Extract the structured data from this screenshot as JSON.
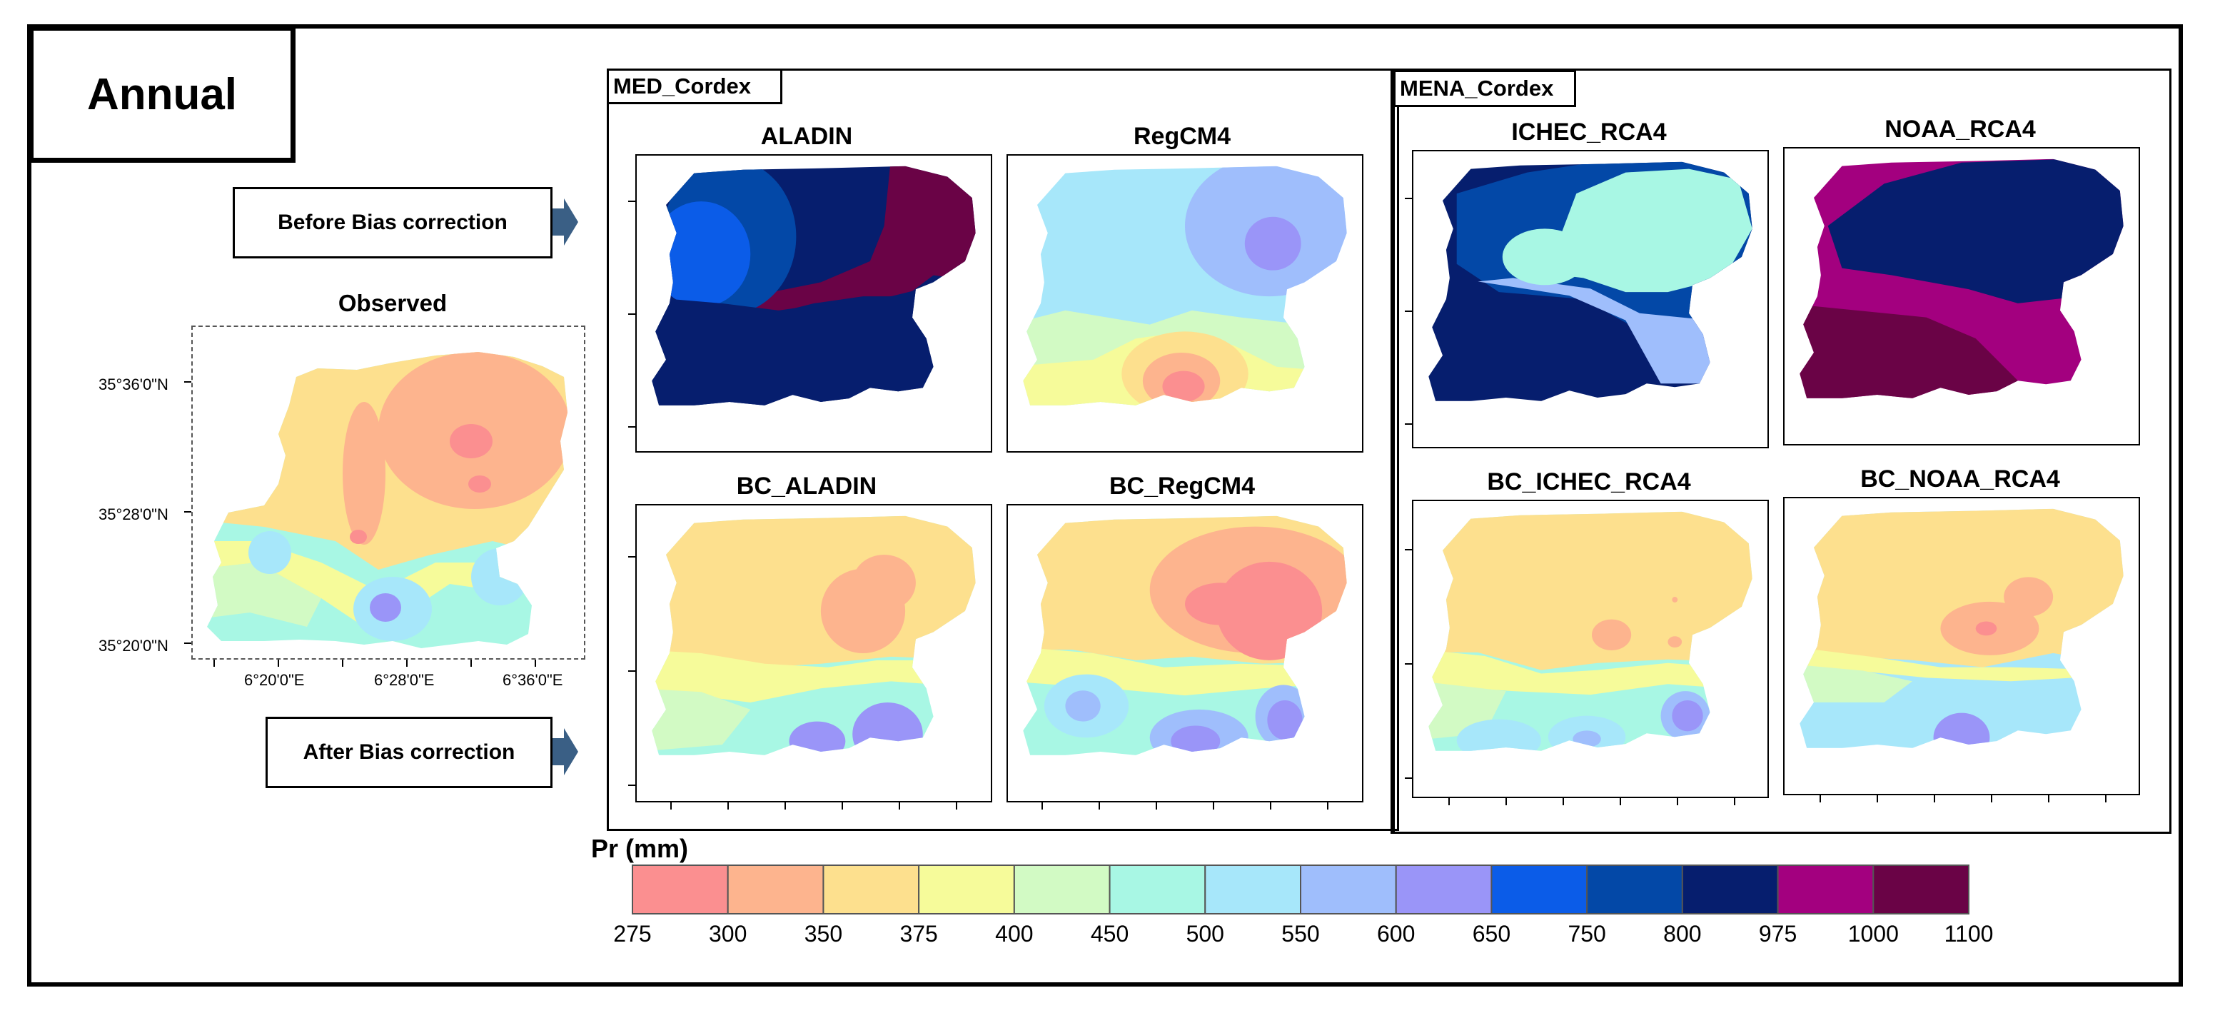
{
  "figure_title": "Annual",
  "groups": {
    "med": "MED_Cordex",
    "mena": "MENA_Cordex"
  },
  "callouts": {
    "before": "Before Bias correction",
    "after": "After Bias correction"
  },
  "observed": {
    "title": "Observed",
    "lat_labels": [
      "35°36'0\"N",
      "35°28'0\"N",
      "35°20'0\"N"
    ],
    "lon_labels": [
      "6°20'0\"E",
      "6°28'0\"E",
      "6°36'0\"E"
    ]
  },
  "panels": {
    "aladin": "ALADIN",
    "regcm4": "RegCM4",
    "ichec": "ICHEC_RCA4",
    "noaa": "NOAA_RCA4",
    "bc_aladin": "BC_ALADIN",
    "bc_regcm4": "BC_RegCM4",
    "bc_ichec": "BC_ICHEC_RCA4",
    "bc_noaa": "BC_NOAA_RCA4"
  },
  "legend": {
    "title": "Pr (mm)",
    "colors": [
      "#fb8f90",
      "#fdb48e",
      "#fde08e",
      "#f6fb9a",
      "#d2fac4",
      "#a8f7e4",
      "#a7e7fa",
      "#9fbefc",
      "#9a95f8",
      "#0b5ce8",
      "#0348a7",
      "#061e6e",
      "#a3007f",
      "#6a0346"
    ],
    "ticks": [
      "275",
      "300",
      "350",
      "375",
      "400",
      "450",
      "500",
      "550",
      "600",
      "650",
      "750",
      "800",
      "975",
      "1000",
      "1100"
    ]
  }
}
